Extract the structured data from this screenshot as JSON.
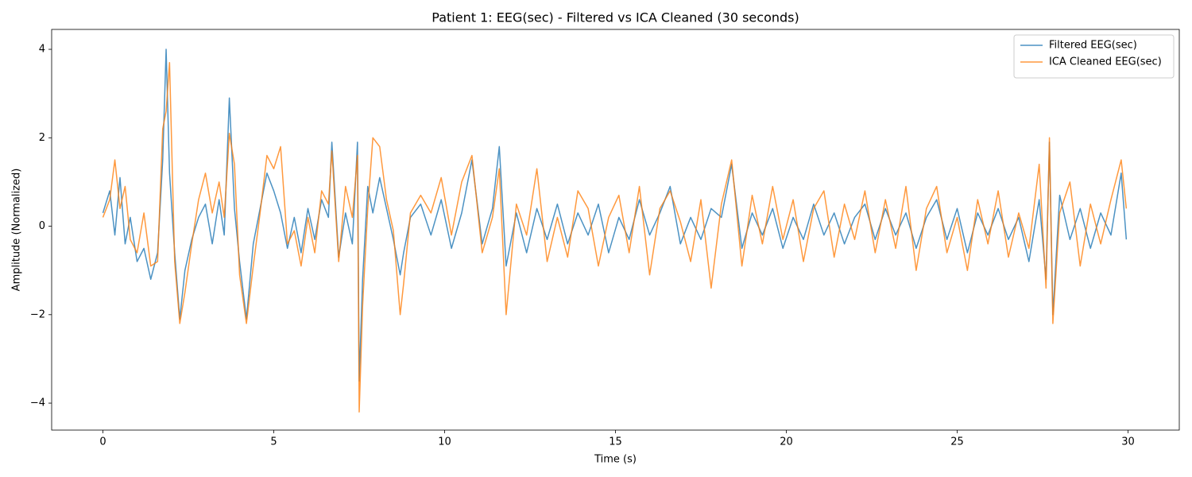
{
  "chart_data": {
    "type": "line",
    "title": "Patient 1: EEG(sec) - Filtered vs ICA Cleaned (30 seconds)",
    "xlabel": "Time (s)",
    "ylabel": "Amplitude (Normalized)",
    "legend": "upper right",
    "grid": false,
    "xlim": [
      -1.5,
      31.5
    ],
    "ylim": [
      -4.61,
      4.45
    ],
    "xticks": [
      0,
      5,
      10,
      15,
      20,
      25,
      30
    ],
    "yticks": [
      {
        "value": -4,
        "label": "−4"
      },
      {
        "value": -2,
        "label": "−2"
      },
      0,
      2,
      4
    ],
    "x": [
      0,
      0.2,
      0.35,
      0.5,
      0.65,
      0.8,
      1.0,
      1.2,
      1.4,
      1.6,
      1.75,
      1.85,
      1.95,
      2.1,
      2.25,
      2.4,
      2.6,
      2.8,
      3.0,
      3.2,
      3.4,
      3.55,
      3.7,
      3.85,
      4.0,
      4.2,
      4.4,
      4.6,
      4.8,
      5.0,
      5.2,
      5.4,
      5.6,
      5.8,
      6.0,
      6.2,
      6.4,
      6.6,
      6.7,
      6.9,
      7.1,
      7.3,
      7.45,
      7.5,
      7.6,
      7.75,
      7.9,
      8.1,
      8.3,
      8.5,
      8.7,
      8.8,
      9.0,
      9.3,
      9.6,
      9.9,
      10.2,
      10.5,
      10.8,
      11.1,
      11.4,
      11.6,
      11.8,
      12.1,
      12.4,
      12.7,
      13.0,
      13.3,
      13.6,
      13.9,
      14.2,
      14.5,
      14.8,
      15.1,
      15.4,
      15.7,
      16.0,
      16.3,
      16.6,
      16.9,
      17.2,
      17.5,
      17.8,
      18.1,
      18.4,
      18.7,
      19.0,
      19.3,
      19.6,
      19.9,
      20.2,
      20.5,
      20.8,
      21.1,
      21.4,
      21.7,
      22.0,
      22.3,
      22.6,
      22.9,
      23.2,
      23.5,
      23.8,
      24.1,
      24.4,
      24.7,
      25.0,
      25.3,
      25.6,
      25.9,
      26.2,
      26.5,
      26.8,
      27.1,
      27.4,
      27.6,
      27.7,
      27.8,
      28.0,
      28.3,
      28.6,
      28.9,
      29.2,
      29.5,
      29.8,
      29.95
    ],
    "series": [
      {
        "name": "Filtered EEG(sec)",
        "color": "#1f77b4",
        "values": [
          0.3,
          0.8,
          -0.2,
          1.1,
          -0.4,
          0.2,
          -0.8,
          -0.5,
          -1.2,
          -0.6,
          1.5,
          4.0,
          1.2,
          -0.6,
          -2.1,
          -1.0,
          -0.3,
          0.2,
          0.5,
          -0.4,
          0.6,
          -0.2,
          2.9,
          0.4,
          -0.8,
          -2.1,
          -0.4,
          0.4,
          1.2,
          0.8,
          0.3,
          -0.5,
          0.2,
          -0.6,
          0.4,
          -0.3,
          0.6,
          0.2,
          1.9,
          -0.7,
          0.3,
          -0.4,
          1.9,
          -3.5,
          -1.2,
          0.9,
          0.3,
          1.1,
          0.4,
          -0.3,
          -1.1,
          -0.6,
          0.2,
          0.5,
          -0.2,
          0.6,
          -0.5,
          0.3,
          1.5,
          -0.4,
          0.4,
          1.8,
          -0.9,
          0.3,
          -0.6,
          0.4,
          -0.3,
          0.5,
          -0.4,
          0.3,
          -0.2,
          0.5,
          -0.6,
          0.2,
          -0.3,
          0.6,
          -0.2,
          0.3,
          0.9,
          -0.4,
          0.2,
          -0.3,
          0.4,
          0.2,
          1.4,
          -0.5,
          0.3,
          -0.2,
          0.4,
          -0.5,
          0.2,
          -0.3,
          0.5,
          -0.2,
          0.3,
          -0.4,
          0.2,
          0.5,
          -0.3,
          0.4,
          -0.2,
          0.3,
          -0.5,
          0.2,
          0.6,
          -0.3,
          0.4,
          -0.6,
          0.3,
          -0.2,
          0.4,
          -0.3,
          0.2,
          -0.8,
          0.6,
          -1.2,
          1.9,
          -2.0,
          0.7,
          -0.3,
          0.4,
          -0.5,
          0.3,
          -0.2,
          1.2,
          -0.3
        ]
      },
      {
        "name": "ICA Cleaned EEG(sec)",
        "color": "#ff7f0e",
        "values": [
          0.2,
          0.6,
          1.5,
          0.4,
          0.9,
          -0.3,
          -0.6,
          0.3,
          -0.9,
          -0.8,
          2.2,
          2.6,
          3.7,
          -0.8,
          -2.2,
          -1.5,
          -0.4,
          0.6,
          1.2,
          0.3,
          1.0,
          0.2,
          2.1,
          1.4,
          -1.1,
          -2.2,
          -0.9,
          0.3,
          1.6,
          1.3,
          1.8,
          -0.4,
          -0.1,
          -0.9,
          0.2,
          -0.6,
          0.8,
          0.5,
          1.7,
          -0.8,
          0.9,
          0.2,
          1.6,
          -4.2,
          -1.8,
          0.4,
          2.0,
          1.8,
          0.6,
          -0.1,
          -2.0,
          -1.3,
          0.3,
          0.7,
          0.3,
          1.1,
          -0.2,
          1.0,
          1.6,
          -0.6,
          0.2,
          1.3,
          -2.0,
          0.5,
          -0.2,
          1.3,
          -0.8,
          0.2,
          -0.7,
          0.8,
          0.4,
          -0.9,
          0.2,
          0.7,
          -0.6,
          0.9,
          -1.1,
          0.4,
          0.8,
          0.1,
          -0.8,
          0.6,
          -1.4,
          0.5,
          1.5,
          -0.9,
          0.7,
          -0.4,
          0.9,
          -0.3,
          0.6,
          -0.8,
          0.4,
          0.8,
          -0.7,
          0.5,
          -0.3,
          0.8,
          -0.6,
          0.6,
          -0.5,
          0.9,
          -1.0,
          0.4,
          0.9,
          -0.6,
          0.2,
          -1.0,
          0.6,
          -0.4,
          0.8,
          -0.7,
          0.3,
          -0.5,
          1.4,
          -1.4,
          2.0,
          -2.2,
          0.3,
          1.0,
          -0.9,
          0.5,
          -0.4,
          0.6,
          1.5,
          0.4
        ]
      }
    ]
  }
}
